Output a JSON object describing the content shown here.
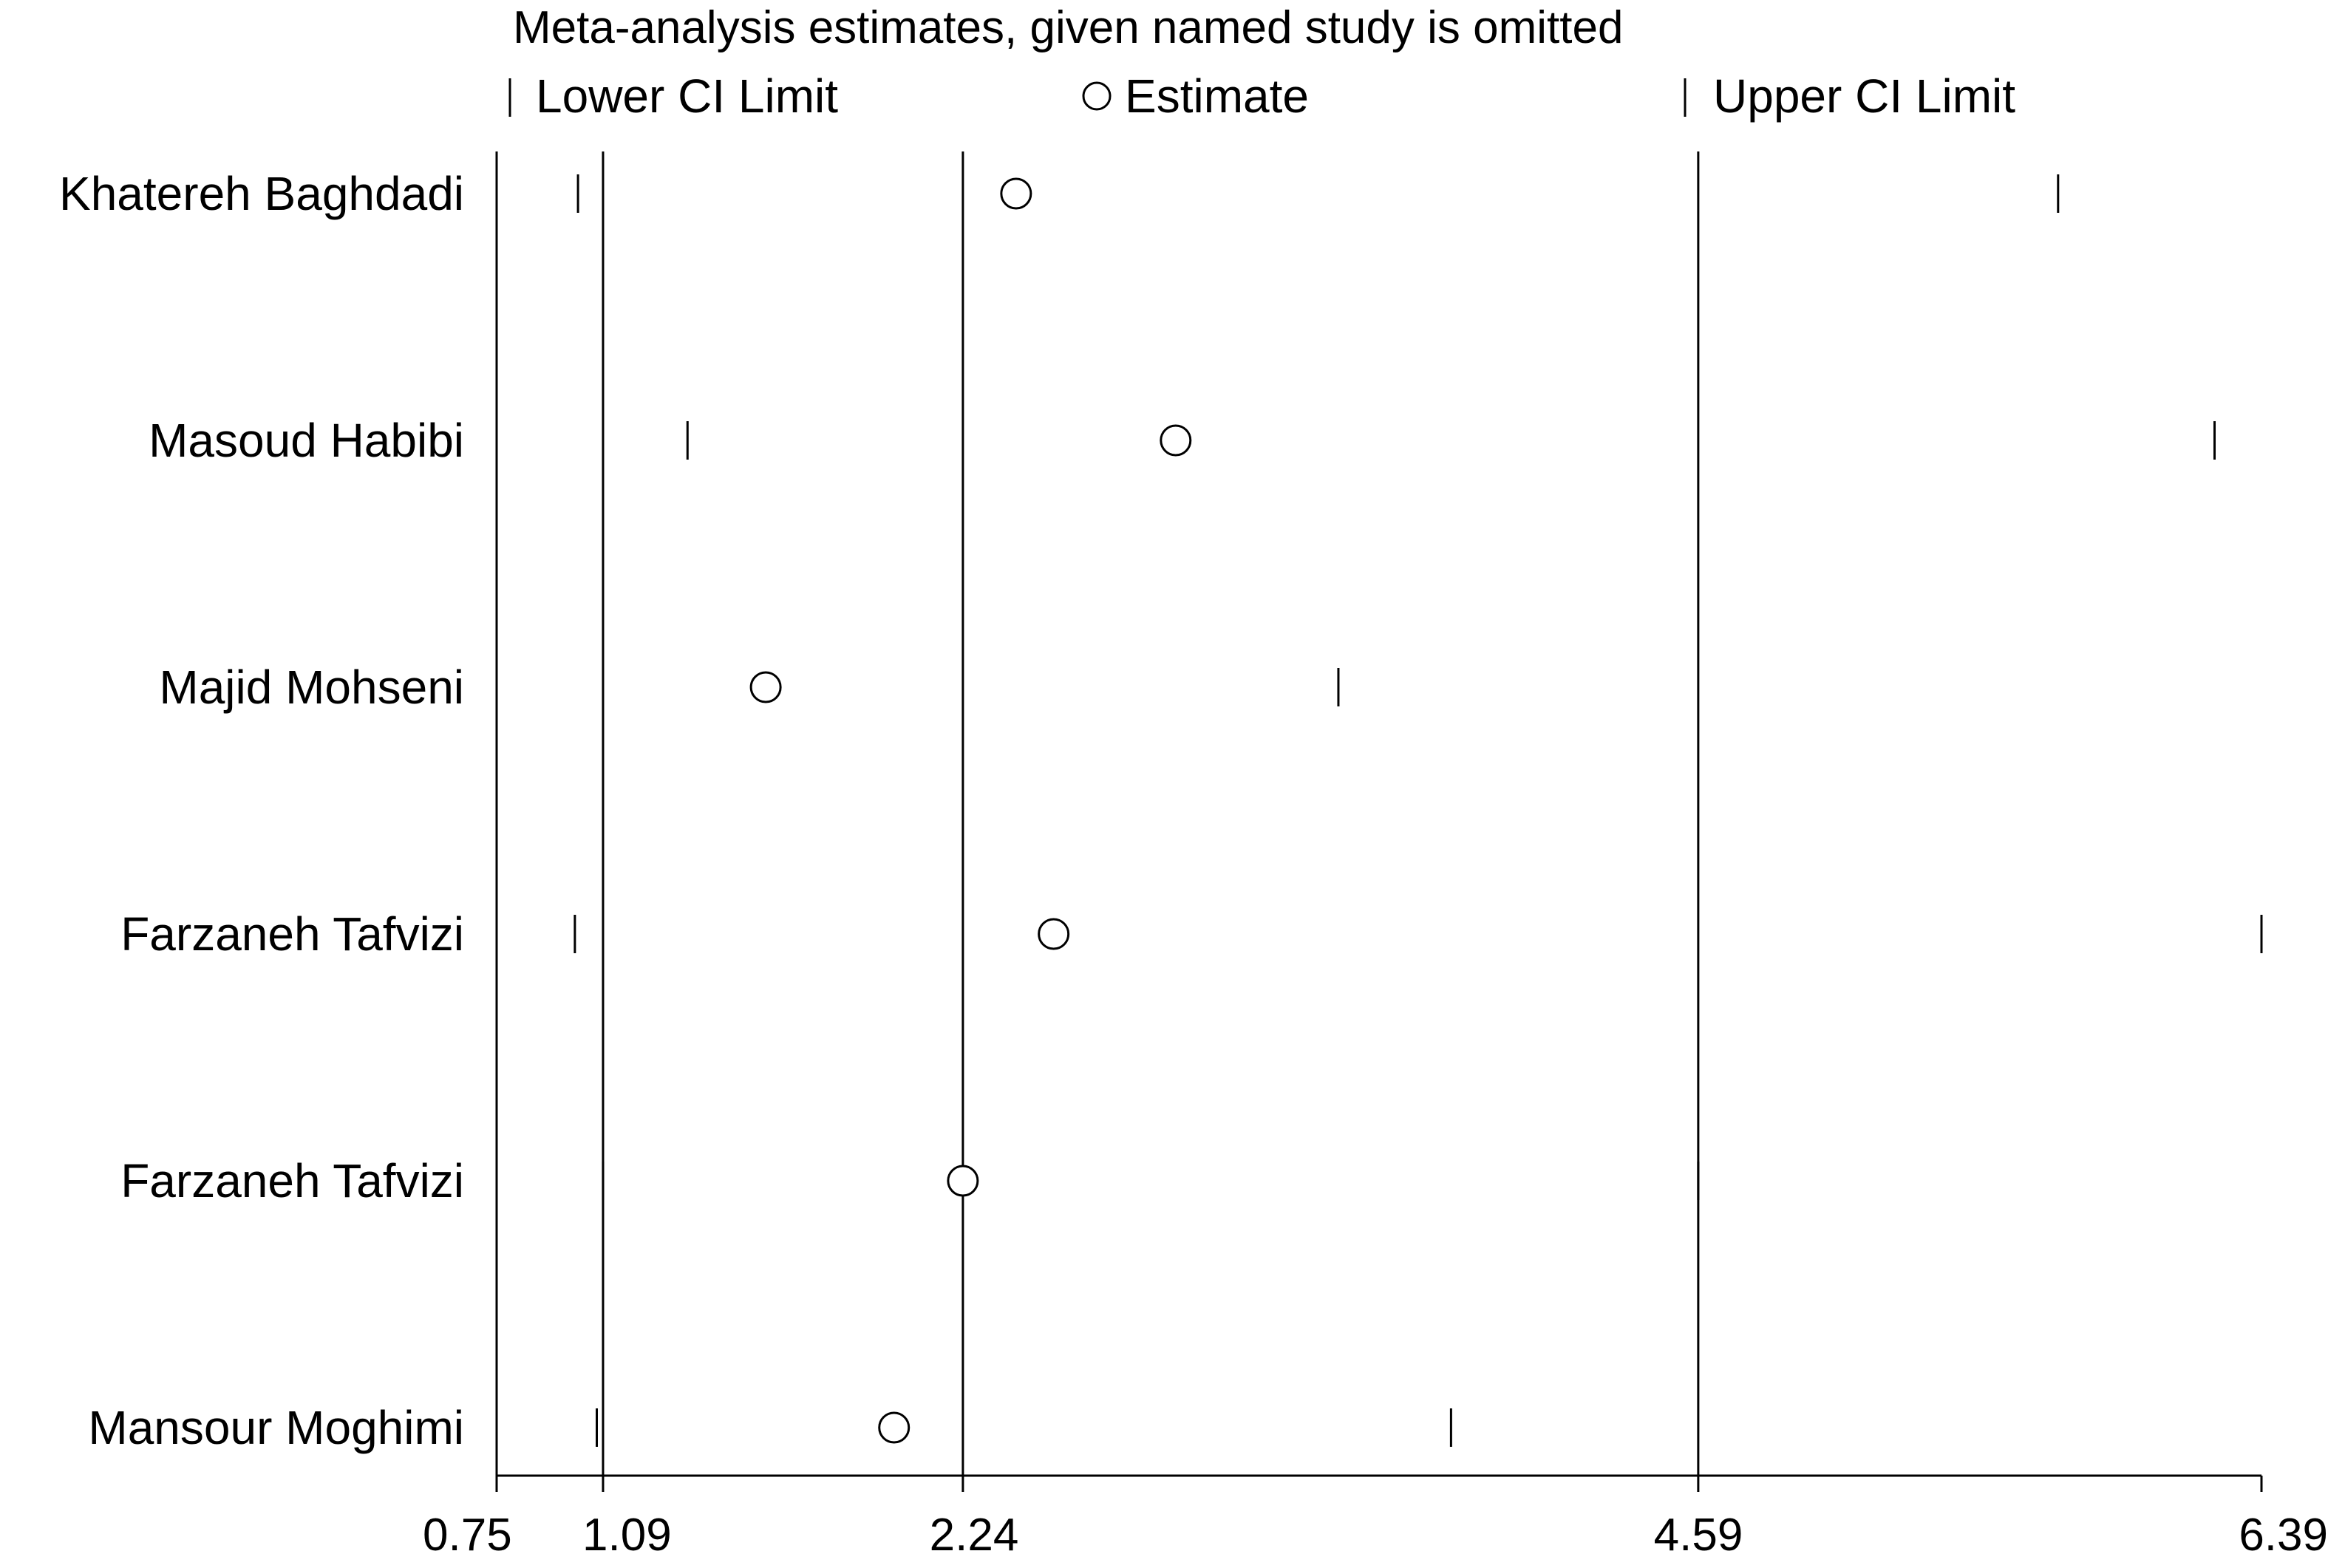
{
  "chart_data": {
    "type": "scatter",
    "title": "Meta-analysis estimates, given named study is omitted",
    "legend": {
      "placement": "top",
      "entries": [
        {
          "symbol": "tick",
          "label": "Lower CI Limit"
        },
        {
          "symbol": "circle",
          "label": "Estimate"
        },
        {
          "symbol": "tick",
          "label": "Upper CI Limit"
        }
      ]
    },
    "x_axis": {
      "range": [
        0.75,
        6.39
      ],
      "ticks": [
        {
          "value": 0.75,
          "label": "0.75"
        },
        {
          "value": 1.09,
          "label": "1.09"
        },
        {
          "value": 2.24,
          "label": "2.24"
        },
        {
          "value": 4.59,
          "label": "4.59"
        },
        {
          "value": 6.39,
          "label": "6.39"
        }
      ]
    },
    "reference_lines": [
      1.09,
      2.24,
      4.59
    ],
    "studies": [
      {
        "label": "Khatereh Baghdadi",
        "lower": 1.01,
        "estimate": 2.41,
        "upper": 5.74
      },
      {
        "label": "Masoud Habibi",
        "lower": 1.36,
        "estimate": 2.92,
        "upper": 6.24
      },
      {
        "label": "Majid Mohseni",
        "lower": 0.75,
        "estimate": 1.61,
        "upper": 3.44
      },
      {
        "label": "Farzaneh Tafvizi",
        "lower": 1.0,
        "estimate": 2.53,
        "upper": 6.39
      },
      {
        "label": "Farzaneh Tafvizi",
        "lower": 1.09,
        "estimate": 2.24,
        "upper": 4.59
      },
      {
        "label": "Mansour Moghimi",
        "lower": 1.07,
        "estimate": 2.02,
        "upper": 3.8
      }
    ],
    "grid": false,
    "colors": {
      "ink": "#000000",
      "background": "#ffffff"
    }
  }
}
